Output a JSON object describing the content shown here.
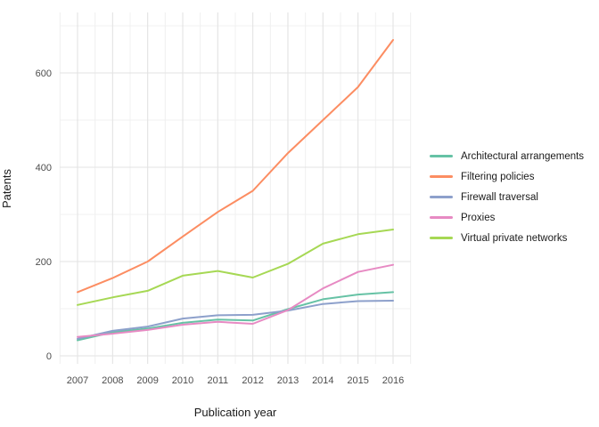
{
  "chart_data": {
    "type": "line",
    "title": "",
    "xlabel": "Publication year",
    "ylabel": "Patents",
    "x": [
      2007,
      2008,
      2009,
      2010,
      2011,
      2012,
      2013,
      2014,
      2015,
      2016
    ],
    "x_tick_labels": [
      "2007",
      "2008",
      "2009",
      "2010",
      "2011",
      "2012",
      "2013",
      "2014",
      "2015",
      "2016"
    ],
    "x_minor_ticks": [
      2006.5,
      2007.5,
      2008.5,
      2009.5,
      2010.5,
      2011.5,
      2012.5,
      2013.5,
      2014.5,
      2015.5,
      2016.5
    ],
    "y_ticks": [
      0,
      200,
      400,
      600
    ],
    "y_tick_labels": [
      "0",
      "200",
      "400",
      "600"
    ],
    "y_minor_ticks": [
      100,
      300,
      500,
      700
    ],
    "ylim": [
      0,
      700
    ],
    "xlim": [
      2006.5,
      2016.5
    ],
    "grid": "on",
    "legend_position": "right",
    "series": [
      {
        "name": "Architectural arrangements",
        "color": "#66c2a5",
        "values": [
          33,
          50,
          58,
          70,
          77,
          75,
          99,
          120,
          130,
          135
        ]
      },
      {
        "name": "Filtering policies",
        "color": "#fc8d62",
        "values": [
          135,
          165,
          200,
          253,
          305,
          350,
          430,
          500,
          570,
          670
        ]
      },
      {
        "name": "Firewall traversal",
        "color": "#8da0cb",
        "values": [
          36,
          53,
          62,
          79,
          86,
          87,
          96,
          110,
          116,
          117
        ]
      },
      {
        "name": "Proxies",
        "color": "#e78ac3",
        "values": [
          40,
          47,
          55,
          66,
          72,
          68,
          97,
          143,
          178,
          193
        ]
      },
      {
        "name": "Virtual private networks",
        "color": "#a6d854",
        "values": [
          108,
          124,
          138,
          170,
          180,
          166,
          195,
          238,
          258,
          268
        ]
      }
    ]
  },
  "colors": {
    "background": "#ffffff",
    "grid_major": "#e3e3e3",
    "grid_minor": "#f0f0f0",
    "tick_text": "#4d4d4d",
    "axis_title_text": "#1a1a1a",
    "legend_text": "#1a1a1a"
  }
}
